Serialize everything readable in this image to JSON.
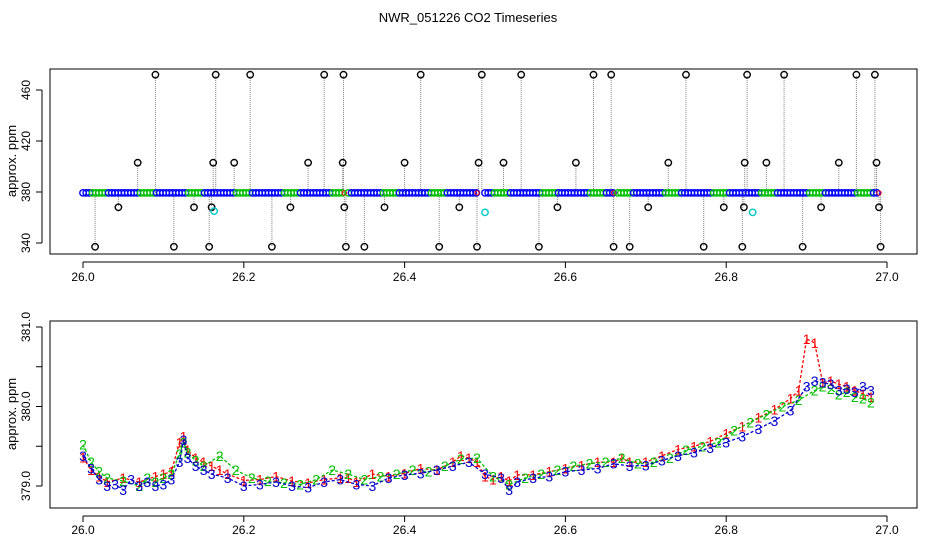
{
  "title": "NWR_051226  CO2 Timeseries",
  "chart_data": [
    {
      "type": "scatter",
      "panel": "top",
      "ylabel": "approx. ppm",
      "xlabel": "",
      "xlim": [
        26.0,
        27.0
      ],
      "ylim": [
        332,
        474
      ],
      "xticks": [
        "26.0",
        "26.2",
        "26.4",
        "26.6",
        "26.8",
        "27.0"
      ],
      "yticks": [
        "340",
        "380",
        "420",
        "460"
      ],
      "baseline_ppm": 379.3,
      "colors": {
        "black": "#000000",
        "blue": "#0000ff",
        "green": "#00c000",
        "red": "#ff0000",
        "cyan": "#00c8c8",
        "gray": "#808080"
      },
      "outliers": [
        {
          "x": 26.015,
          "y": 337
        },
        {
          "x": 26.044,
          "y": 368
        },
        {
          "x": 26.068,
          "y": 403
        },
        {
          "x": 26.09,
          "y": 472
        },
        {
          "x": 26.113,
          "y": 337
        },
        {
          "x": 26.138,
          "y": 368
        },
        {
          "x": 26.157,
          "y": 337
        },
        {
          "x": 26.16,
          "y": 368
        },
        {
          "x": 26.162,
          "y": 403
        },
        {
          "x": 26.165,
          "y": 472
        },
        {
          "x": 26.188,
          "y": 403
        },
        {
          "x": 26.208,
          "y": 472
        },
        {
          "x": 26.235,
          "y": 337
        },
        {
          "x": 26.258,
          "y": 368
        },
        {
          "x": 26.28,
          "y": 403
        },
        {
          "x": 26.3,
          "y": 472
        },
        {
          "x": 26.323,
          "y": 403
        },
        {
          "x": 26.324,
          "y": 472
        },
        {
          "x": 26.325,
          "y": 368
        },
        {
          "x": 26.327,
          "y": 337
        },
        {
          "x": 26.35,
          "y": 337
        },
        {
          "x": 26.375,
          "y": 368
        },
        {
          "x": 26.4,
          "y": 403
        },
        {
          "x": 26.42,
          "y": 472
        },
        {
          "x": 26.443,
          "y": 337
        },
        {
          "x": 26.468,
          "y": 368
        },
        {
          "x": 26.49,
          "y": 337
        },
        {
          "x": 26.492,
          "y": 403
        },
        {
          "x": 26.496,
          "y": 472
        },
        {
          "x": 26.523,
          "y": 403
        },
        {
          "x": 26.545,
          "y": 472
        },
        {
          "x": 26.567,
          "y": 337
        },
        {
          "x": 26.59,
          "y": 368
        },
        {
          "x": 26.613,
          "y": 403
        },
        {
          "x": 26.635,
          "y": 472
        },
        {
          "x": 26.657,
          "y": 472
        },
        {
          "x": 26.66,
          "y": 337
        },
        {
          "x": 26.68,
          "y": 337
        },
        {
          "x": 26.703,
          "y": 368
        },
        {
          "x": 26.728,
          "y": 403
        },
        {
          "x": 26.75,
          "y": 472
        },
        {
          "x": 26.772,
          "y": 337
        },
        {
          "x": 26.797,
          "y": 368
        },
        {
          "x": 26.82,
          "y": 337
        },
        {
          "x": 26.822,
          "y": 368
        },
        {
          "x": 26.823,
          "y": 403
        },
        {
          "x": 26.826,
          "y": 472
        },
        {
          "x": 26.85,
          "y": 403
        },
        {
          "x": 26.872,
          "y": 472
        },
        {
          "x": 26.895,
          "y": 337
        },
        {
          "x": 26.918,
          "y": 368
        },
        {
          "x": 26.94,
          "y": 403
        },
        {
          "x": 26.962,
          "y": 472
        },
        {
          "x": 26.985,
          "y": 472
        },
        {
          "x": 26.987,
          "y": 403
        },
        {
          "x": 26.99,
          "y": 368
        },
        {
          "x": 26.992,
          "y": 337
        }
      ],
      "cyan_points": [
        {
          "x": 26.163,
          "y": 365
        },
        {
          "x": 26.5,
          "y": 364
        },
        {
          "x": 26.833,
          "y": 364
        }
      ]
    },
    {
      "type": "line",
      "panel": "bottom",
      "ylabel": "approx. ppm",
      "xlabel": "",
      "xlim": [
        26.0,
        27.0
      ],
      "ylim": [
        378.78,
        381.2
      ],
      "xticks": [
        "26.0",
        "26.2",
        "26.4",
        "26.6",
        "26.8",
        "27.0"
      ],
      "yticks": [
        "379.0",
        "379.5",
        "380.0",
        "380.5",
        "381.0"
      ],
      "markers": [
        "1",
        "2",
        "3"
      ],
      "series": [
        {
          "name": "1",
          "color": "#ff0000",
          "x": [
            26.0,
            26.01,
            26.02,
            26.03,
            26.05,
            26.07,
            26.09,
            26.1,
            26.11,
            26.12,
            26.125,
            26.13,
            26.14,
            26.15,
            26.16,
            26.17,
            26.18,
            26.2,
            26.22,
            26.24,
            26.26,
            26.28,
            26.3,
            26.32,
            26.33,
            26.34,
            26.36,
            26.38,
            26.4,
            26.42,
            26.44,
            26.46,
            26.47,
            26.48,
            26.49,
            26.5,
            26.51,
            26.52,
            26.53,
            26.54,
            26.56,
            26.58,
            26.6,
            26.62,
            26.64,
            26.66,
            26.67,
            26.68,
            26.7,
            26.72,
            26.74,
            26.76,
            26.78,
            26.8,
            26.82,
            26.84,
            26.86,
            26.88,
            26.89,
            26.9,
            26.91,
            26.92,
            26.93,
            26.94,
            26.95,
            26.96,
            26.97,
            26.98
          ],
          "y": [
            379.36,
            379.2,
            379.12,
            379.05,
            379.1,
            379.05,
            379.12,
            379.15,
            379.18,
            379.55,
            379.62,
            379.45,
            379.35,
            379.3,
            379.25,
            379.2,
            379.15,
            379.07,
            379.08,
            379.12,
            379.06,
            379.04,
            379.08,
            379.1,
            379.1,
            379.05,
            379.15,
            379.12,
            379.16,
            379.22,
            379.2,
            379.3,
            379.38,
            379.35,
            379.3,
            379.12,
            379.08,
            379.12,
            379.06,
            379.14,
            379.14,
            379.18,
            379.22,
            379.26,
            379.3,
            379.3,
            379.35,
            379.3,
            379.3,
            379.38,
            379.46,
            379.5,
            379.56,
            379.66,
            379.75,
            379.86,
            379.96,
            380.1,
            380.2,
            380.85,
            380.8,
            380.3,
            380.32,
            380.28,
            380.25,
            380.2,
            380.16,
            380.12
          ]
        },
        {
          "name": "2",
          "color": "#00c000",
          "x": [
            26.0,
            26.01,
            26.02,
            26.03,
            26.05,
            26.07,
            26.08,
            26.09,
            26.1,
            26.11,
            26.12,
            26.125,
            26.13,
            26.14,
            26.15,
            26.17,
            26.19,
            26.21,
            26.23,
            26.25,
            26.27,
            26.29,
            26.31,
            26.33,
            26.35,
            26.37,
            26.39,
            26.41,
            26.43,
            26.45,
            26.47,
            26.49,
            26.51,
            26.53,
            26.55,
            26.57,
            26.59,
            26.61,
            26.63,
            26.65,
            26.67,
            26.69,
            26.71,
            26.73,
            26.75,
            26.77,
            26.79,
            26.81,
            26.83,
            26.85,
            26.87,
            26.89,
            26.91,
            26.92,
            26.93,
            26.94,
            26.95,
            26.96,
            26.97,
            26.98
          ],
          "y": [
            379.52,
            379.3,
            379.18,
            379.1,
            379.06,
            379.0,
            379.1,
            379.05,
            379.1,
            379.15,
            379.4,
            379.55,
            379.42,
            379.32,
            379.25,
            379.38,
            379.2,
            379.1,
            379.06,
            379.04,
            379.02,
            379.08,
            379.2,
            379.15,
            379.08,
            379.12,
            379.15,
            379.2,
            379.18,
            379.25,
            379.34,
            379.35,
            379.12,
            379.02,
            379.1,
            379.15,
            379.2,
            379.25,
            379.28,
            379.3,
            379.35,
            379.28,
            379.3,
            379.35,
            379.45,
            379.5,
            379.55,
            379.7,
            379.8,
            379.9,
            380.0,
            380.08,
            380.2,
            380.25,
            380.22,
            380.15,
            380.18,
            380.12,
            380.1,
            380.05
          ]
        },
        {
          "name": "3",
          "color": "#0000cc",
          "x": [
            26.0,
            26.01,
            26.02,
            26.03,
            26.04,
            26.05,
            26.06,
            26.07,
            26.08,
            26.09,
            26.1,
            26.11,
            26.12,
            26.125,
            26.13,
            26.14,
            26.15,
            26.16,
            26.18,
            26.2,
            26.22,
            26.24,
            26.26,
            26.28,
            26.3,
            26.32,
            26.34,
            26.36,
            26.38,
            26.4,
            26.42,
            26.44,
            26.46,
            26.48,
            26.5,
            26.52,
            26.53,
            26.54,
            26.56,
            26.58,
            26.6,
            26.62,
            26.64,
            26.66,
            26.68,
            26.7,
            26.72,
            26.74,
            26.76,
            26.78,
            26.8,
            26.82,
            26.84,
            26.86,
            26.88,
            26.9,
            26.91,
            26.92,
            26.93,
            26.94,
            26.95,
            26.96,
            26.97,
            26.98
          ],
          "y": [
            379.38,
            379.22,
            379.08,
            379.0,
            379.02,
            378.95,
            379.08,
            379.0,
            379.05,
            379.0,
            379.02,
            379.08,
            379.3,
            379.58,
            379.35,
            379.25,
            379.2,
            379.15,
            379.1,
            379.0,
            379.02,
            379.05,
            379.0,
            378.98,
            379.05,
            379.08,
            379.02,
            379.0,
            379.1,
            379.14,
            379.16,
            379.2,
            379.25,
            379.3,
            379.15,
            379.1,
            378.95,
            379.05,
            379.1,
            379.12,
            379.18,
            379.2,
            379.22,
            379.28,
            379.25,
            379.26,
            379.32,
            379.38,
            379.42,
            379.48,
            379.55,
            379.62,
            379.72,
            379.82,
            379.95,
            380.25,
            380.32,
            380.3,
            380.28,
            380.2,
            380.22,
            380.18,
            380.25,
            380.2
          ]
        }
      ]
    }
  ]
}
